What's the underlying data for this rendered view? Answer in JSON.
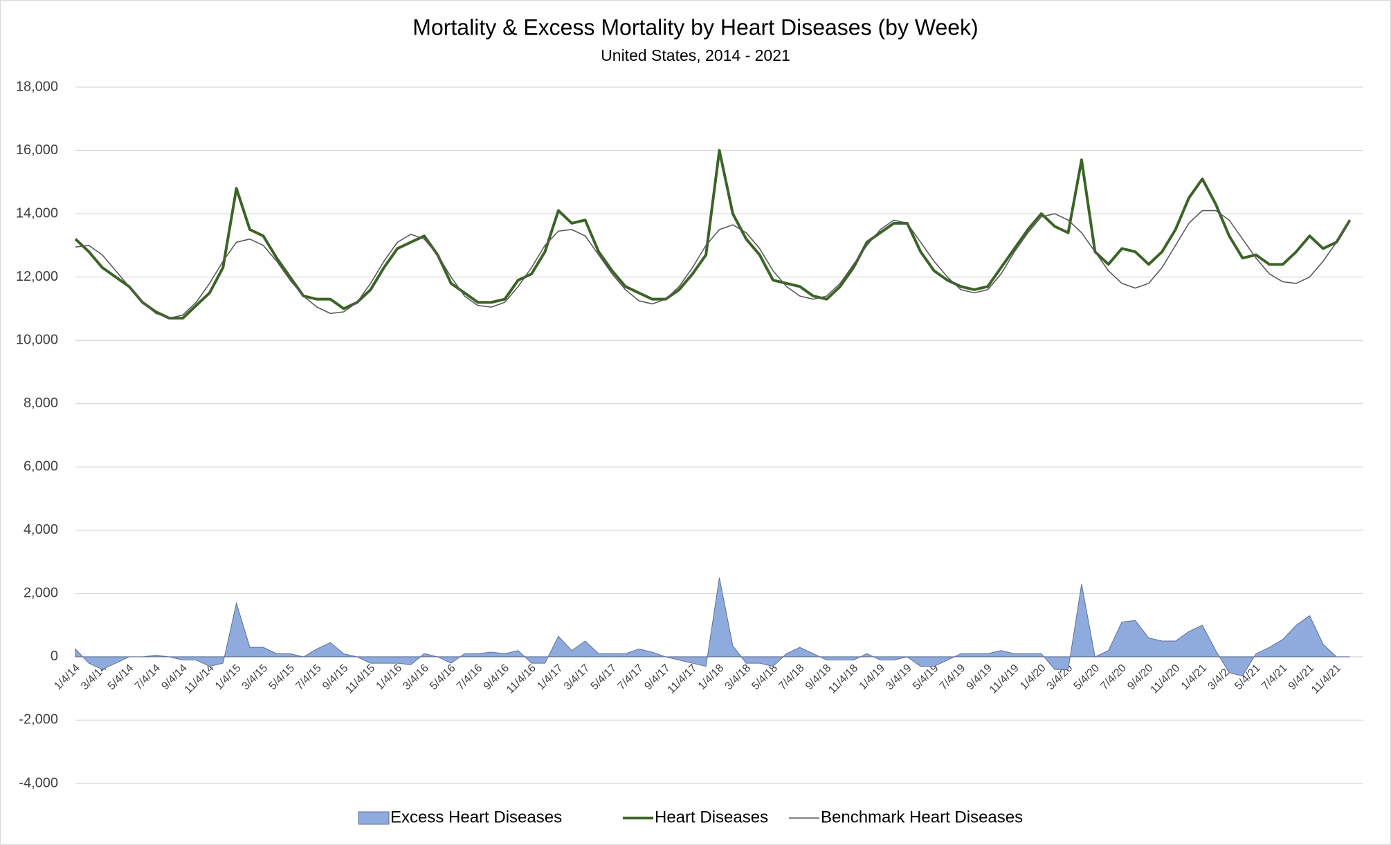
{
  "chart_data": {
    "type": "line",
    "title": "Mortality & Excess Mortality by Heart Diseases (by Week)",
    "subtitle": "United States, 2014 - 2021",
    "categories": [
      "1/4/14",
      null,
      "3/4/14",
      null,
      "5/4/14",
      null,
      "7/4/14",
      null,
      "9/4/14",
      null,
      "11/4/14",
      null,
      "1/4/15",
      null,
      "3/4/15",
      null,
      "5/4/15",
      null,
      "7/4/15",
      null,
      "9/4/15",
      null,
      "11/4/15",
      null,
      "1/4/16",
      null,
      "3/4/16",
      null,
      "5/4/16",
      null,
      "7/4/16",
      null,
      "9/4/16",
      null,
      "11/4/16",
      null,
      "1/4/17",
      null,
      "3/4/17",
      null,
      "5/4/17",
      null,
      "7/4/17",
      null,
      "9/4/17",
      null,
      "11/4/17",
      null,
      "1/4/18",
      null,
      "3/4/18",
      null,
      "5/4/18",
      null,
      "7/4/18",
      null,
      "9/4/18",
      null,
      "11/4/18",
      null,
      "1/4/19",
      null,
      "3/4/19",
      null,
      "5/4/19",
      null,
      "7/4/19",
      null,
      "9/4/19",
      null,
      "11/4/19",
      null,
      "1/4/20",
      null,
      "3/4/20",
      null,
      "5/4/20",
      null,
      "7/4/20",
      null,
      "9/4/20",
      null,
      "11/4/20",
      null,
      "1/4/21",
      null,
      "3/4/21",
      null,
      "5/4/21",
      null,
      "7/4/21",
      null,
      "9/4/21",
      null,
      "11/4/21",
      null
    ],
    "series": [
      {
        "name": "Excess Heart Diseases",
        "kind": "area",
        "color": "#8faadc",
        "values": [
          250,
          -200,
          -400,
          -200,
          0,
          0,
          50,
          0,
          -100,
          -100,
          -300,
          -200,
          1700,
          300,
          300,
          100,
          100,
          0,
          250,
          450,
          100,
          0,
          -200,
          -200,
          -200,
          -250,
          100,
          0,
          -200,
          100,
          100,
          150,
          100,
          200,
          -200,
          -200,
          650,
          200,
          500,
          100,
          100,
          100,
          250,
          150,
          0,
          -100,
          -200,
          -300,
          2500,
          350,
          -200,
          -200,
          -300,
          100,
          300,
          100,
          -100,
          -100,
          -100,
          100,
          -100,
          -100,
          0,
          -300,
          -300,
          -100,
          100,
          100,
          100,
          200,
          100,
          100,
          100,
          -400,
          -400,
          2300,
          0,
          200,
          1100,
          1150,
          600,
          500,
          500,
          800,
          1000,
          200,
          -500,
          -600,
          100,
          300,
          550,
          1000,
          1300,
          400,
          0,
          0
        ]
      },
      {
        "name": "Heart Diseases",
        "kind": "line",
        "color": "#3b6426",
        "values": [
          13200,
          12800,
          12300,
          12000,
          11700,
          11200,
          10900,
          10700,
          10700,
          11100,
          11500,
          12300,
          14800,
          13500,
          13300,
          12600,
          12000,
          11400,
          11300,
          11300,
          11000,
          11200,
          11600,
          12300,
          12900,
          13100,
          13300,
          12700,
          11800,
          11500,
          11200,
          11200,
          11300,
          11900,
          12100,
          12800,
          14100,
          13700,
          13800,
          12800,
          12200,
          11700,
          11500,
          11300,
          11300,
          11600,
          12100,
          12700,
          16000,
          14000,
          13200,
          12700,
          11900,
          11800,
          11700,
          11400,
          11300,
          11700,
          12300,
          13100,
          13400,
          13700,
          13700,
          12800,
          12200,
          11900,
          11700,
          11600,
          11700,
          12300,
          12900,
          13500,
          14000,
          13600,
          13400,
          15700,
          12800,
          12400,
          12900,
          12800,
          12400,
          12800,
          13500,
          14500,
          15100,
          14300,
          13300,
          12600,
          12700,
          12400,
          12400,
          12800,
          13300,
          12900,
          13100,
          13800
        ]
      },
      {
        "name": "Benchmark Heart Diseases",
        "kind": "thin",
        "color": "#595959",
        "values": [
          12950,
          13000,
          12700,
          12200,
          11700,
          11200,
          10850,
          10700,
          10800,
          11200,
          11800,
          12500,
          13100,
          13200,
          13000,
          12500,
          11900,
          11400,
          11050,
          10850,
          10900,
          11200,
          11800,
          12500,
          13100,
          13350,
          13200,
          12700,
          12000,
          11400,
          11100,
          11050,
          11200,
          11700,
          12300,
          13000,
          13450,
          13500,
          13300,
          12700,
          12100,
          11600,
          11250,
          11150,
          11300,
          11700,
          12300,
          13000,
          13500,
          13650,
          13400,
          12900,
          12200,
          11700,
          11400,
          11300,
          11400,
          11800,
          12400,
          13000,
          13500,
          13800,
          13700,
          13100,
          12500,
          12000,
          11600,
          11500,
          11600,
          12100,
          12800,
          13400,
          13900,
          14000,
          13800,
          13400,
          12800,
          12200,
          11800,
          11650,
          11800,
          12300,
          13000,
          13700,
          14100,
          14100,
          13800,
          13200,
          12600,
          12100,
          11850,
          11800,
          12000,
          12500,
          13100,
          13800
        ]
      }
    ],
    "ylim": [
      -4000,
      18000
    ],
    "yticks": [
      {
        "value": -4000,
        "label": "-4,000"
      },
      {
        "value": -2000,
        "label": "-2,000"
      },
      0,
      {
        "value": 2000,
        "label": "2,000"
      },
      {
        "value": 4000,
        "label": "4,000"
      },
      {
        "value": 6000,
        "label": "6,000"
      },
      {
        "value": 8000,
        "label": "8,000"
      },
      {
        "value": 10000,
        "label": "10,000"
      },
      {
        "value": 12000,
        "label": "12,000"
      },
      {
        "value": 14000,
        "label": "14,000"
      },
      {
        "value": 16000,
        "label": "16,000"
      },
      {
        "value": 18000,
        "label": "18,000"
      }
    ],
    "grid": true,
    "legend": "bottom"
  }
}
